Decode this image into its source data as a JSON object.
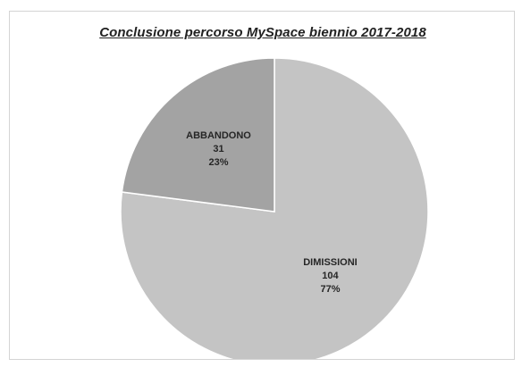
{
  "chart_data": {
    "type": "pie",
    "title": "Conclusione percorso MySpace biennio 2017-2018",
    "slices": [
      {
        "label": "DIMISSIONI",
        "value": 104,
        "percent": "77%",
        "color": "#c4c4c4"
      },
      {
        "label": "ABBANDONO",
        "value": 31,
        "percent": "23%",
        "color": "#a3a3a3"
      }
    ],
    "start_angle_deg": 0,
    "direction": "clockwise",
    "legend": "none"
  }
}
